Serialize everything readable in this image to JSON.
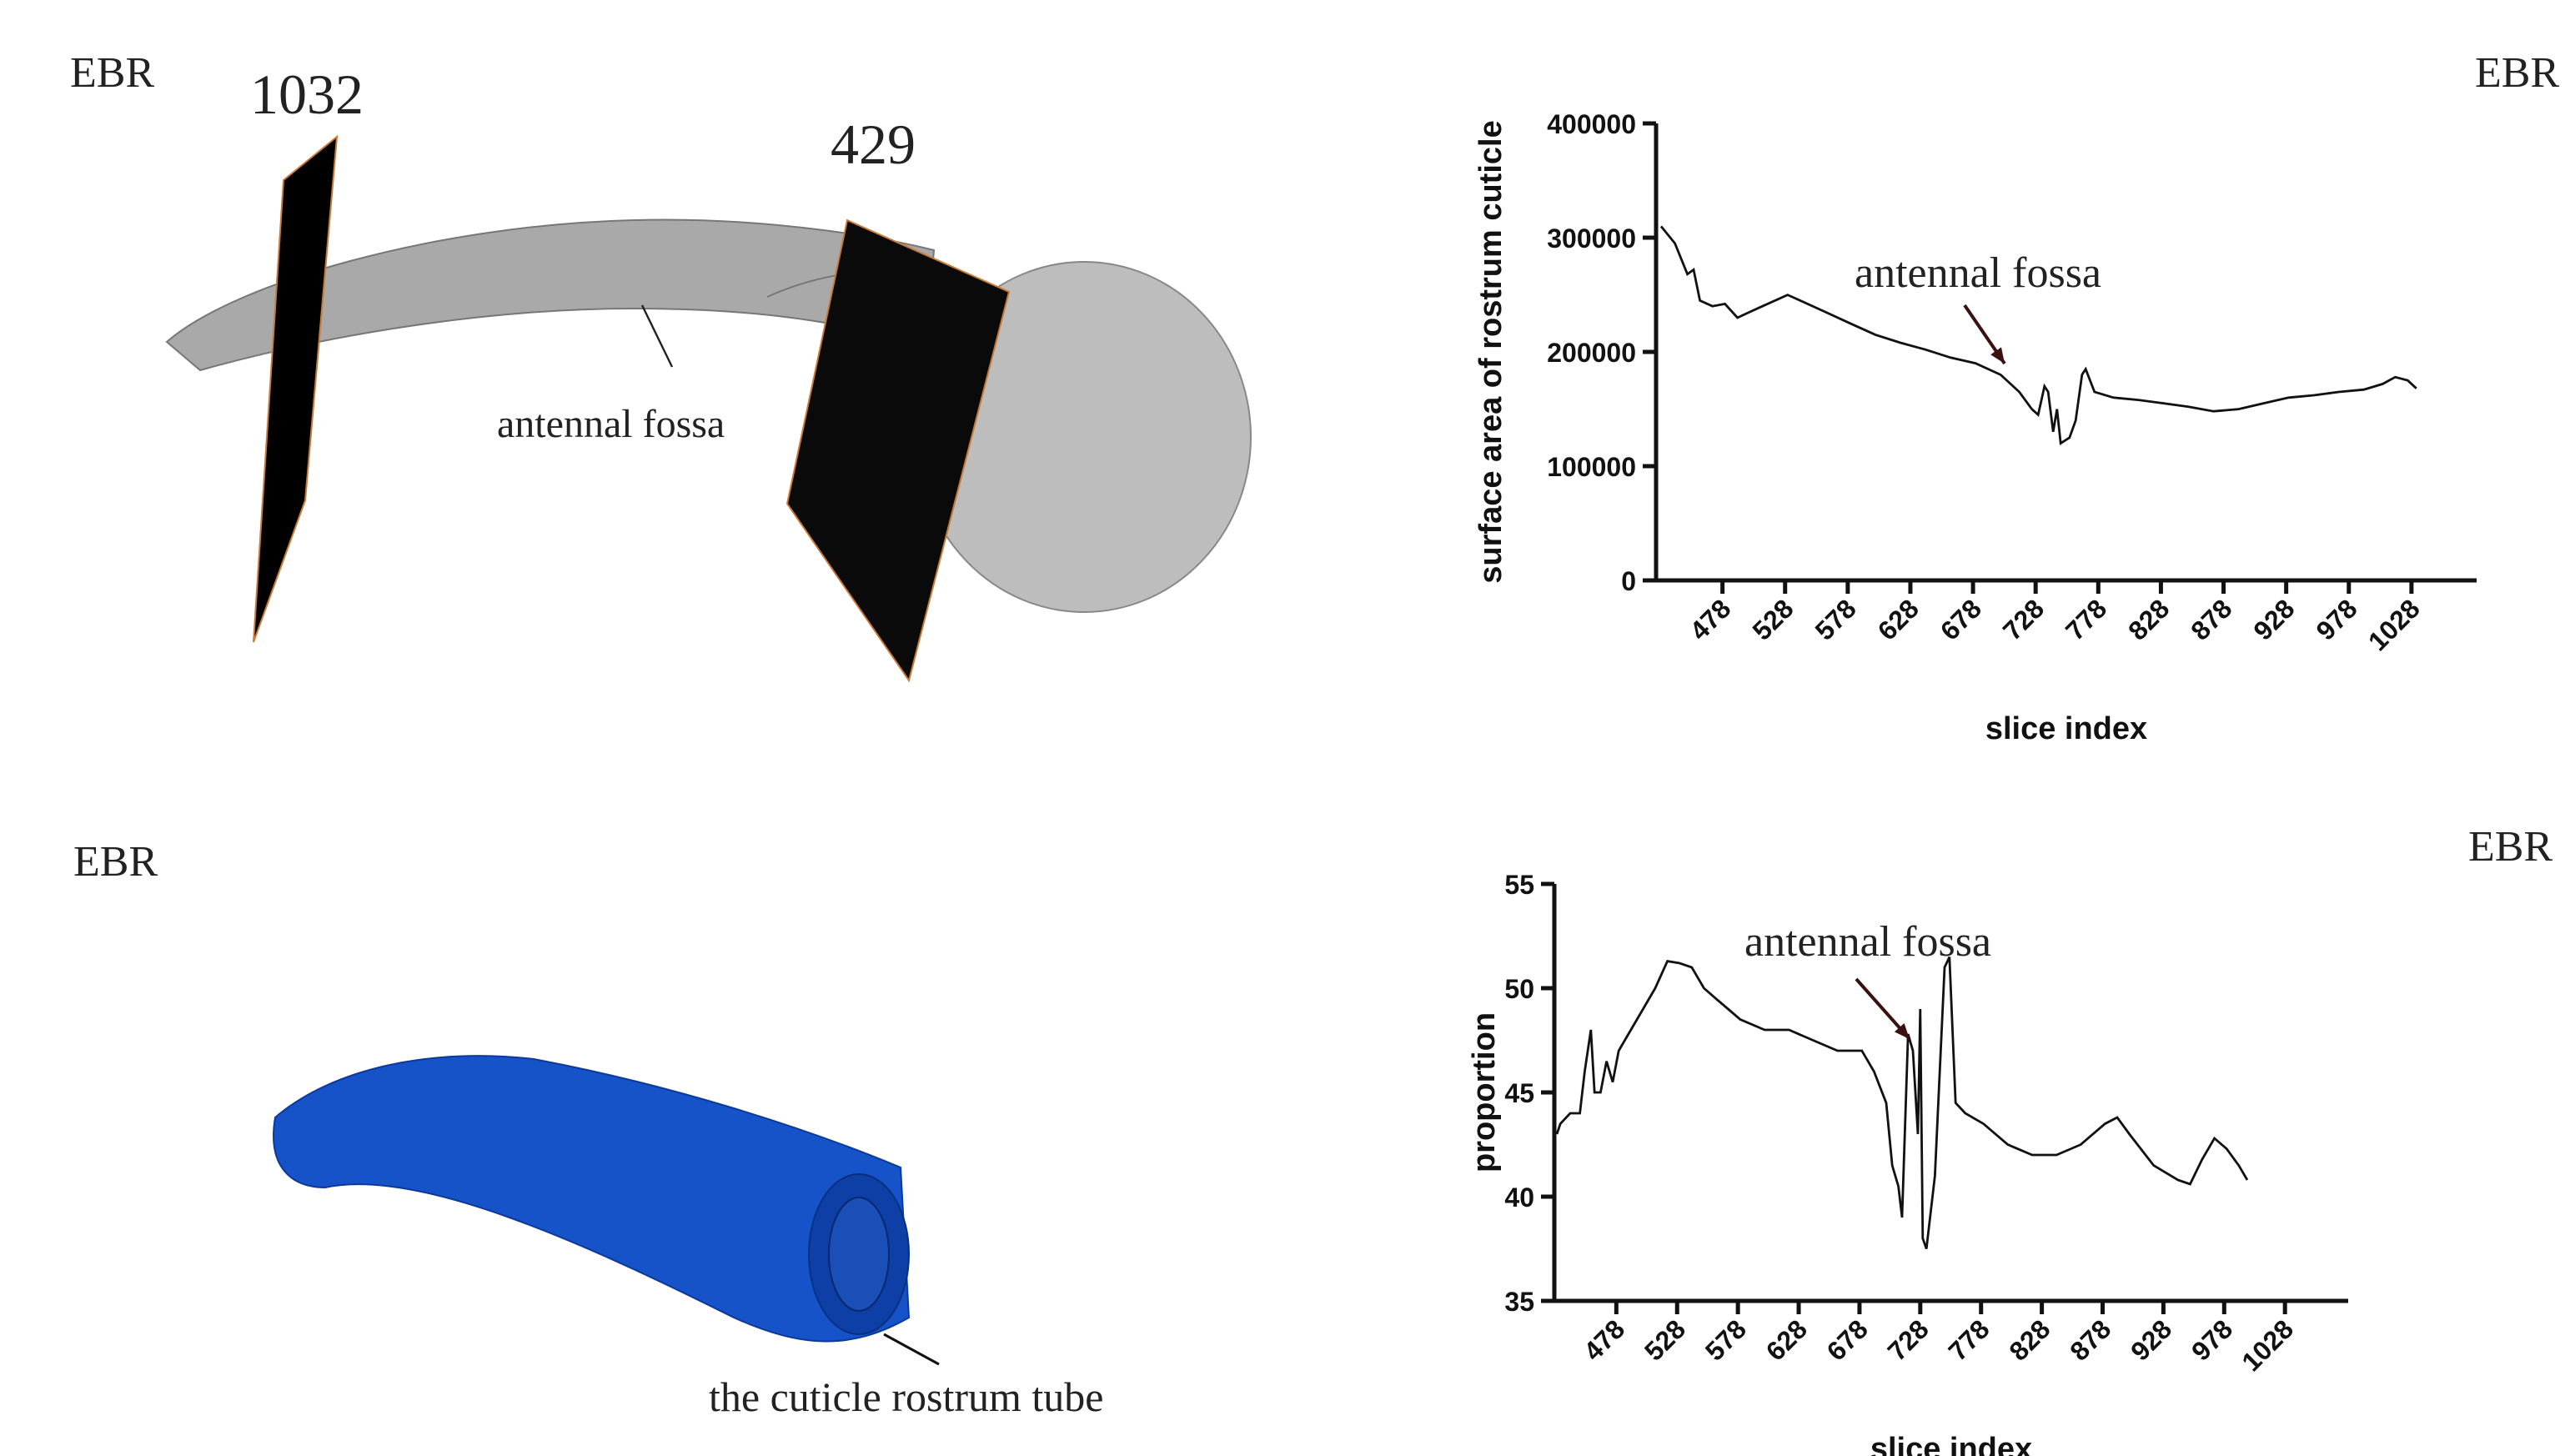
{
  "images": [
    {
      "label": "EBR",
      "planes": [
        "1032",
        "429"
      ],
      "annotation": "antennal fossa"
    },
    {
      "label": "EBR",
      "annotation": "the cuticle rostrum tube"
    }
  ],
  "chart_data": [
    {
      "type": "line",
      "label": "EBR",
      "annotation": "antennal fossa",
      "x_label": "slice index",
      "y_label": "surface area of rostrum cuticle",
      "color": "#111111",
      "x": [
        429,
        440,
        450,
        455,
        460,
        470,
        480,
        490,
        500,
        510,
        530,
        540,
        560,
        580,
        600,
        620,
        640,
        660,
        680,
        700,
        715,
        725,
        730,
        735,
        738,
        742,
        745,
        748,
        755,
        760,
        765,
        768,
        775,
        790,
        810,
        830,
        850,
        870,
        890,
        910,
        930,
        950,
        970,
        990,
        1005,
        1015,
        1025,
        1032
      ],
      "values": [
        310000,
        295000,
        268000,
        272000,
        245000,
        240000,
        242000,
        230000,
        235000,
        240000,
        250000,
        245000,
        235000,
        225000,
        215000,
        208000,
        202000,
        195000,
        190000,
        180000,
        165000,
        150000,
        145000,
        170000,
        165000,
        130000,
        150000,
        120000,
        125000,
        140000,
        180000,
        185000,
        165000,
        160000,
        158000,
        155000,
        152000,
        148000,
        150000,
        155000,
        160000,
        162000,
        165000,
        167000,
        172000,
        178000,
        175000,
        168000
      ],
      "xlim": [
        425,
        1080
      ],
      "xticks": [
        478,
        528,
        578,
        628,
        678,
        728,
        778,
        828,
        878,
        928,
        978,
        1028
      ],
      "ylim": [
        0,
        400000
      ],
      "yticks": [
        0,
        100000,
        200000,
        300000,
        400000
      ]
    },
    {
      "type": "line",
      "label": "EBR",
      "annotation": "antennal fossa",
      "x_label": "slice index",
      "y_label": "proportion",
      "color": "#111111",
      "x": [
        429,
        432,
        440,
        448,
        452,
        457,
        460,
        465,
        470,
        475,
        480,
        490,
        500,
        510,
        520,
        530,
        540,
        550,
        560,
        570,
        580,
        600,
        620,
        640,
        660,
        680,
        690,
        700,
        705,
        710,
        713,
        718,
        722,
        726,
        728,
        730,
        733,
        740,
        748,
        752,
        757,
        765,
        780,
        800,
        820,
        840,
        860,
        880,
        890,
        900,
        920,
        940,
        950,
        960,
        970,
        980,
        990,
        997
      ],
      "values": [
        43,
        43.5,
        44,
        44,
        46,
        48,
        45,
        45,
        46.5,
        45.5,
        47,
        48,
        49,
        50,
        51.3,
        51.2,
        51,
        50,
        49.5,
        49,
        48.5,
        48,
        48,
        47.5,
        47,
        47,
        46,
        44.5,
        41.5,
        40.5,
        39,
        47.8,
        47,
        43,
        49,
        38,
        37.5,
        41,
        51,
        51.5,
        44.5,
        44,
        43.5,
        42.5,
        42,
        42,
        42.5,
        43.5,
        43.8,
        43,
        41.5,
        40.8,
        40.6,
        41.8,
        42.8,
        42.3,
        41.5,
        40.8
      ],
      "xlim": [
        427,
        1080
      ],
      "xticks": [
        478,
        528,
        578,
        628,
        678,
        728,
        778,
        828,
        878,
        928,
        978,
        1028
      ],
      "ylim": [
        35,
        55
      ],
      "yticks": [
        35,
        40,
        45,
        50,
        55
      ]
    }
  ]
}
